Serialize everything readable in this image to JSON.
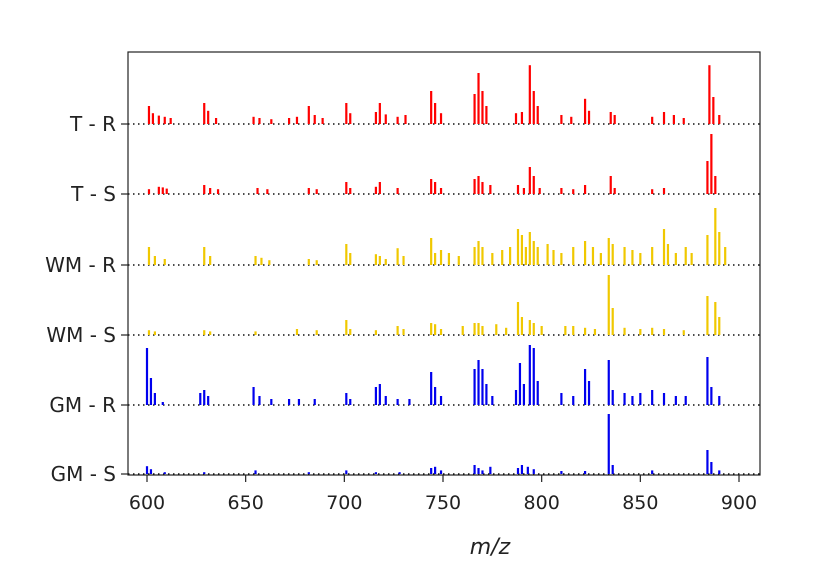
{
  "chart_data": {
    "type": "bar",
    "title": "",
    "xlabel": "m/z",
    "ylabel": "",
    "xlim": [
      590,
      910
    ],
    "xticks": [
      600,
      650,
      700,
      750,
      800,
      850,
      900
    ],
    "grid": false,
    "legend": "none",
    "baseline_style": "dotted",
    "series": [
      {
        "name": "T - R",
        "color": "#ff0000",
        "peaks": [
          [
            601,
            0.3
          ],
          [
            603,
            0.18
          ],
          [
            606,
            0.14
          ],
          [
            609,
            0.12
          ],
          [
            612,
            0.1
          ],
          [
            629,
            0.35
          ],
          [
            631,
            0.22
          ],
          [
            635,
            0.1
          ],
          [
            654,
            0.12
          ],
          [
            657,
            0.1
          ],
          [
            663,
            0.08
          ],
          [
            672,
            0.1
          ],
          [
            676,
            0.12
          ],
          [
            682,
            0.3
          ],
          [
            685,
            0.15
          ],
          [
            689,
            0.1
          ],
          [
            701,
            0.35
          ],
          [
            703,
            0.18
          ],
          [
            716,
            0.2
          ],
          [
            718,
            0.35
          ],
          [
            721,
            0.16
          ],
          [
            727,
            0.12
          ],
          [
            731,
            0.15
          ],
          [
            744,
            0.55
          ],
          [
            746,
            0.35
          ],
          [
            749,
            0.18
          ],
          [
            766,
            0.5
          ],
          [
            768,
            0.85
          ],
          [
            770,
            0.55
          ],
          [
            772,
            0.3
          ],
          [
            787,
            0.18
          ],
          [
            790,
            0.2
          ],
          [
            794,
            0.98
          ],
          [
            796,
            0.55
          ],
          [
            798,
            0.3
          ],
          [
            810,
            0.15
          ],
          [
            815,
            0.12
          ],
          [
            822,
            0.42
          ],
          [
            824,
            0.22
          ],
          [
            835,
            0.2
          ],
          [
            837,
            0.15
          ],
          [
            856,
            0.12
          ],
          [
            862,
            0.2
          ],
          [
            867,
            0.15
          ],
          [
            872,
            0.1
          ],
          [
            885,
            0.98
          ],
          [
            887,
            0.45
          ],
          [
            890,
            0.15
          ]
        ]
      },
      {
        "name": "T - S",
        "color": "#ff0000",
        "peaks": [
          [
            601,
            0.08
          ],
          [
            606,
            0.12
          ],
          [
            608,
            0.11
          ],
          [
            610,
            0.09
          ],
          [
            629,
            0.15
          ],
          [
            632,
            0.1
          ],
          [
            636,
            0.08
          ],
          [
            656,
            0.1
          ],
          [
            661,
            0.08
          ],
          [
            682,
            0.1
          ],
          [
            686,
            0.08
          ],
          [
            701,
            0.2
          ],
          [
            703,
            0.1
          ],
          [
            716,
            0.12
          ],
          [
            718,
            0.2
          ],
          [
            727,
            0.1
          ],
          [
            744,
            0.25
          ],
          [
            746,
            0.2
          ],
          [
            749,
            0.1
          ],
          [
            766,
            0.25
          ],
          [
            768,
            0.3
          ],
          [
            770,
            0.2
          ],
          [
            774,
            0.15
          ],
          [
            788,
            0.15
          ],
          [
            791,
            0.1
          ],
          [
            794,
            0.45
          ],
          [
            796,
            0.3
          ],
          [
            799,
            0.1
          ],
          [
            810,
            0.1
          ],
          [
            816,
            0.08
          ],
          [
            822,
            0.15
          ],
          [
            835,
            0.3
          ],
          [
            837,
            0.1
          ],
          [
            856,
            0.08
          ],
          [
            862,
            0.1
          ],
          [
            884,
            0.55
          ],
          [
            886,
            1.0
          ],
          [
            888,
            0.3
          ]
        ]
      },
      {
        "name": "WM - R",
        "color": "#f0c800",
        "peaks": [
          [
            601,
            0.3
          ],
          [
            604,
            0.15
          ],
          [
            609,
            0.1
          ],
          [
            629,
            0.3
          ],
          [
            632,
            0.15
          ],
          [
            655,
            0.15
          ],
          [
            658,
            0.12
          ],
          [
            662,
            0.08
          ],
          [
            682,
            0.1
          ],
          [
            686,
            0.08
          ],
          [
            701,
            0.35
          ],
          [
            703,
            0.2
          ],
          [
            716,
            0.18
          ],
          [
            718,
            0.15
          ],
          [
            721,
            0.1
          ],
          [
            727,
            0.28
          ],
          [
            730,
            0.15
          ],
          [
            744,
            0.45
          ],
          [
            746,
            0.2
          ],
          [
            749,
            0.25
          ],
          [
            753,
            0.2
          ],
          [
            758,
            0.15
          ],
          [
            766,
            0.3
          ],
          [
            768,
            0.4
          ],
          [
            770,
            0.3
          ],
          [
            775,
            0.2
          ],
          [
            780,
            0.25
          ],
          [
            784,
            0.3
          ],
          [
            788,
            0.6
          ],
          [
            790,
            0.5
          ],
          [
            792,
            0.3
          ],
          [
            794,
            0.55
          ],
          [
            796,
            0.4
          ],
          [
            798,
            0.3
          ],
          [
            803,
            0.35
          ],
          [
            806,
            0.25
          ],
          [
            810,
            0.2
          ],
          [
            816,
            0.3
          ],
          [
            822,
            0.4
          ],
          [
            826,
            0.3
          ],
          [
            830,
            0.2
          ],
          [
            834,
            0.45
          ],
          [
            836,
            0.35
          ],
          [
            842,
            0.3
          ],
          [
            846,
            0.25
          ],
          [
            850,
            0.2
          ],
          [
            856,
            0.3
          ],
          [
            862,
            0.6
          ],
          [
            864,
            0.35
          ],
          [
            868,
            0.2
          ],
          [
            873,
            0.3
          ],
          [
            876,
            0.2
          ],
          [
            884,
            0.5
          ],
          [
            888,
            0.95
          ],
          [
            890,
            0.55
          ],
          [
            893,
            0.3
          ]
        ]
      },
      {
        "name": "WM - S",
        "color": "#f0c800",
        "peaks": [
          [
            601,
            0.08
          ],
          [
            604,
            0.06
          ],
          [
            629,
            0.08
          ],
          [
            632,
            0.06
          ],
          [
            655,
            0.06
          ],
          [
            676,
            0.1
          ],
          [
            686,
            0.08
          ],
          [
            701,
            0.25
          ],
          [
            703,
            0.1
          ],
          [
            716,
            0.08
          ],
          [
            727,
            0.15
          ],
          [
            730,
            0.1
          ],
          [
            744,
            0.2
          ],
          [
            746,
            0.18
          ],
          [
            749,
            0.1
          ],
          [
            760,
            0.15
          ],
          [
            766,
            0.2
          ],
          [
            768,
            0.2
          ],
          [
            770,
            0.15
          ],
          [
            777,
            0.18
          ],
          [
            782,
            0.12
          ],
          [
            788,
            0.55
          ],
          [
            790,
            0.3
          ],
          [
            794,
            0.25
          ],
          [
            796,
            0.2
          ],
          [
            800,
            0.15
          ],
          [
            812,
            0.15
          ],
          [
            816,
            0.15
          ],
          [
            822,
            0.12
          ],
          [
            827,
            0.1
          ],
          [
            834,
            1.0
          ],
          [
            836,
            0.45
          ],
          [
            842,
            0.12
          ],
          [
            850,
            0.1
          ],
          [
            856,
            0.12
          ],
          [
            862,
            0.1
          ],
          [
            872,
            0.08
          ],
          [
            884,
            0.65
          ],
          [
            888,
            0.55
          ],
          [
            890,
            0.3
          ]
        ]
      },
      {
        "name": "GM - R",
        "color": "#0000ee",
        "peaks": [
          [
            600,
            0.95
          ],
          [
            602,
            0.45
          ],
          [
            604,
            0.2
          ],
          [
            608,
            0.05
          ],
          [
            627,
            0.2
          ],
          [
            629,
            0.25
          ],
          [
            631,
            0.15
          ],
          [
            654,
            0.3
          ],
          [
            657,
            0.15
          ],
          [
            663,
            0.1
          ],
          [
            672,
            0.1
          ],
          [
            677,
            0.1
          ],
          [
            685,
            0.1
          ],
          [
            701,
            0.2
          ],
          [
            703,
            0.1
          ],
          [
            716,
            0.3
          ],
          [
            718,
            0.35
          ],
          [
            721,
            0.15
          ],
          [
            727,
            0.1
          ],
          [
            733,
            0.1
          ],
          [
            744,
            0.55
          ],
          [
            746,
            0.3
          ],
          [
            749,
            0.15
          ],
          [
            766,
            0.6
          ],
          [
            768,
            0.75
          ],
          [
            770,
            0.6
          ],
          [
            772,
            0.35
          ],
          [
            775,
            0.15
          ],
          [
            787,
            0.25
          ],
          [
            789,
            0.7
          ],
          [
            791,
            0.35
          ],
          [
            794,
            1.0
          ],
          [
            796,
            0.95
          ],
          [
            798,
            0.4
          ],
          [
            810,
            0.2
          ],
          [
            816,
            0.15
          ],
          [
            822,
            0.6
          ],
          [
            824,
            0.4
          ],
          [
            834,
            0.75
          ],
          [
            836,
            0.25
          ],
          [
            842,
            0.2
          ],
          [
            846,
            0.15
          ],
          [
            850,
            0.2
          ],
          [
            856,
            0.25
          ],
          [
            862,
            0.2
          ],
          [
            868,
            0.15
          ],
          [
            873,
            0.15
          ],
          [
            884,
            0.8
          ],
          [
            886,
            0.3
          ],
          [
            890,
            0.15
          ]
        ]
      },
      {
        "name": "GM - S",
        "color": "#0000ee",
        "peaks": [
          [
            600,
            0.13
          ],
          [
            602,
            0.08
          ],
          [
            609,
            0.03
          ],
          [
            629,
            0.03
          ],
          [
            655,
            0.06
          ],
          [
            682,
            0.03
          ],
          [
            701,
            0.06
          ],
          [
            716,
            0.03
          ],
          [
            728,
            0.03
          ],
          [
            744,
            0.1
          ],
          [
            746,
            0.12
          ],
          [
            749,
            0.06
          ],
          [
            766,
            0.15
          ],
          [
            768,
            0.1
          ],
          [
            770,
            0.06
          ],
          [
            774,
            0.12
          ],
          [
            788,
            0.1
          ],
          [
            790,
            0.15
          ],
          [
            793,
            0.12
          ],
          [
            796,
            0.08
          ],
          [
            810,
            0.05
          ],
          [
            822,
            0.05
          ],
          [
            834,
            1.0
          ],
          [
            836,
            0.15
          ],
          [
            856,
            0.06
          ],
          [
            884,
            0.4
          ],
          [
            886,
            0.2
          ],
          [
            890,
            0.06
          ]
        ]
      }
    ]
  }
}
